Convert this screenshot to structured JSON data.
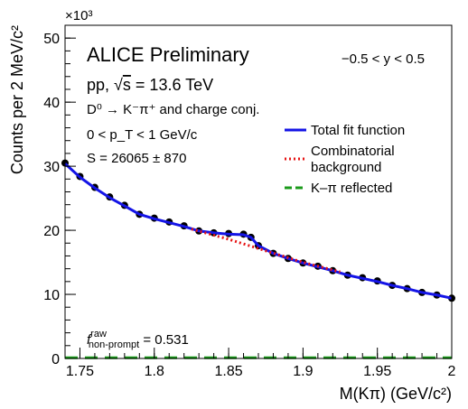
{
  "chart_data": {
    "type": "scatter",
    "title": "ALICE Preliminary",
    "info_lines": [
      {
        "prefix": "pp, ",
        "sqrt": "s",
        "suffix": " = 13.6 TeV"
      },
      {
        "text": "D⁰ → K⁻π⁺ and charge conj."
      },
      {
        "text": "0 < p_T < 1 GeV/c"
      },
      {
        "text": "S = 26065 ± 870"
      }
    ],
    "rapidity_label": "−0.5 < y < 0.5",
    "fraction_label": {
      "symbol": "f",
      "superscript": "raw",
      "subscript": "non-prompt",
      "value": "= 0.531"
    },
    "xlabel": "M(Kπ) (GeV/c²)",
    "ylabel": "Counts per 2 MeV/c²",
    "y_multiplier": "×10³",
    "xlim": [
      1.74,
      2.0
    ],
    "ylim": [
      0,
      52
    ],
    "xticks": [
      1.75,
      1.8,
      1.85,
      1.9,
      1.95,
      2.0
    ],
    "xtick_labels": [
      "1.75",
      "1.8",
      "1.85",
      "1.9",
      "1.95",
      "2"
    ],
    "yticks": [
      0,
      10,
      20,
      30,
      40,
      50
    ],
    "ytick_labels": [
      "0",
      "10",
      "20",
      "30",
      "40",
      "50"
    ],
    "legend": {
      "placement": "right",
      "entries": [
        {
          "label": "Total fit function",
          "color": "#1414e6",
          "style": "solid"
        },
        {
          "label": "Combinatorial background",
          "color": "#e61414",
          "style": "dotted"
        },
        {
          "label": "K–π reflected",
          "color": "#1a9a1a",
          "style": "dashed"
        }
      ]
    },
    "series": [
      {
        "name": "Data",
        "x": [
          1.74,
          1.75,
          1.76,
          1.77,
          1.78,
          1.79,
          1.8,
          1.81,
          1.82,
          1.83,
          1.84,
          1.85,
          1.86,
          1.865,
          1.87,
          1.88,
          1.89,
          1.9,
          1.91,
          1.92,
          1.93,
          1.94,
          1.95,
          1.96,
          1.97,
          1.98,
          1.99,
          2.0
        ],
        "y": [
          30.5,
          28.4,
          26.7,
          25.2,
          23.9,
          22.5,
          21.9,
          21.3,
          20.7,
          19.9,
          19.6,
          19.5,
          19.4,
          18.9,
          17.6,
          16.4,
          15.6,
          14.9,
          14.4,
          13.7,
          13.0,
          12.6,
          12.1,
          11.4,
          10.9,
          10.3,
          9.9,
          9.4
        ]
      },
      {
        "name": "Total fit function",
        "x": [
          1.74,
          1.75,
          1.76,
          1.77,
          1.78,
          1.79,
          1.8,
          1.81,
          1.82,
          1.83,
          1.84,
          1.85,
          1.86,
          1.865,
          1.87,
          1.88,
          1.89,
          1.9,
          1.91,
          1.92,
          1.93,
          1.94,
          1.95,
          1.96,
          1.97,
          1.98,
          1.99,
          2.0
        ],
        "y": [
          30.4,
          28.3,
          26.6,
          25.1,
          23.8,
          22.5,
          21.8,
          21.2,
          20.6,
          19.9,
          19.6,
          19.4,
          19.3,
          18.9,
          17.6,
          16.4,
          15.6,
          14.9,
          14.3,
          13.7,
          13.0,
          12.5,
          12.0,
          11.4,
          10.9,
          10.3,
          9.9,
          9.4
        ]
      },
      {
        "name": "Combinatorial background",
        "x": [
          1.825,
          1.85,
          1.875,
          1.9,
          1.925
        ],
        "y": [
          20.2,
          18.6,
          16.8,
          15.0,
          13.5
        ]
      },
      {
        "name": "K–π reflected",
        "x": [
          1.74,
          2.0
        ],
        "y": [
          0.1,
          0.1
        ]
      }
    ]
  }
}
